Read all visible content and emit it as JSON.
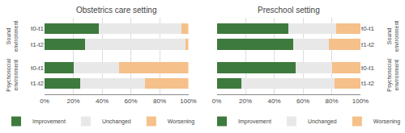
{
  "chart_data": [
    {
      "type": "bar",
      "orientation": "horizontal",
      "stacked": true,
      "title": "Obstetrics care setting",
      "categories": [
        "t0-t1",
        "t1-t2",
        "t0-t1",
        "t1-t2"
      ],
      "annotations": [
        "Sound\nenvironment",
        "Psychosocial\nenvironment"
      ],
      "series": [
        {
          "name": "Improvement",
          "color": "#3d7a3d",
          "values": [
            38,
            28,
            20,
            25
          ]
        },
        {
          "name": "Unchanged",
          "color": "#e8e8e8",
          "values": [
            57,
            70,
            32,
            45
          ]
        },
        {
          "name": "Worsening",
          "color": "#f5c08a",
          "values": [
            5,
            2,
            48,
            30
          ]
        }
      ],
      "xlim": [
        0,
        100
      ],
      "xticks": [
        {
          "value": 0,
          "label": "0%"
        },
        {
          "value": 20,
          "label": "20%"
        },
        {
          "value": 40,
          "label": "40%"
        },
        {
          "value": 60,
          "label": "60%"
        },
        {
          "value": 80,
          "label": "80%"
        },
        {
          "value": 100,
          "label": "100%"
        }
      ],
      "grid": true,
      "legend": "bottom"
    },
    {
      "type": "bar",
      "orientation": "horizontal",
      "stacked": true,
      "title": "Preschool setting",
      "categories": [
        "t0-t1",
        "t1-t2",
        "t0-t1",
        "t1-t2"
      ],
      "annotations": [
        "Sound\nenvironment",
        "Psychosocial\nenvironment"
      ],
      "series": [
        {
          "name": "Improvement",
          "color": "#3d7a3d",
          "values": [
            50,
            53,
            55,
            17
          ]
        },
        {
          "name": "Unchanged",
          "color": "#e8e8e8",
          "values": [
            33,
            25,
            25,
            65
          ]
        },
        {
          "name": "Worsening",
          "color": "#f5c08a",
          "values": [
            17,
            22,
            20,
            18
          ]
        }
      ],
      "xlim": [
        0,
        100
      ],
      "xticks": [
        {
          "value": 0,
          "label": "0%"
        },
        {
          "value": 20,
          "label": "20%"
        },
        {
          "value": 40,
          "label": "40%"
        },
        {
          "value": 60,
          "label": "60%"
        },
        {
          "value": 80,
          "label": "80%"
        },
        {
          "value": 100,
          "label": "100%"
        }
      ],
      "grid": true,
      "legend": "bottom"
    }
  ]
}
